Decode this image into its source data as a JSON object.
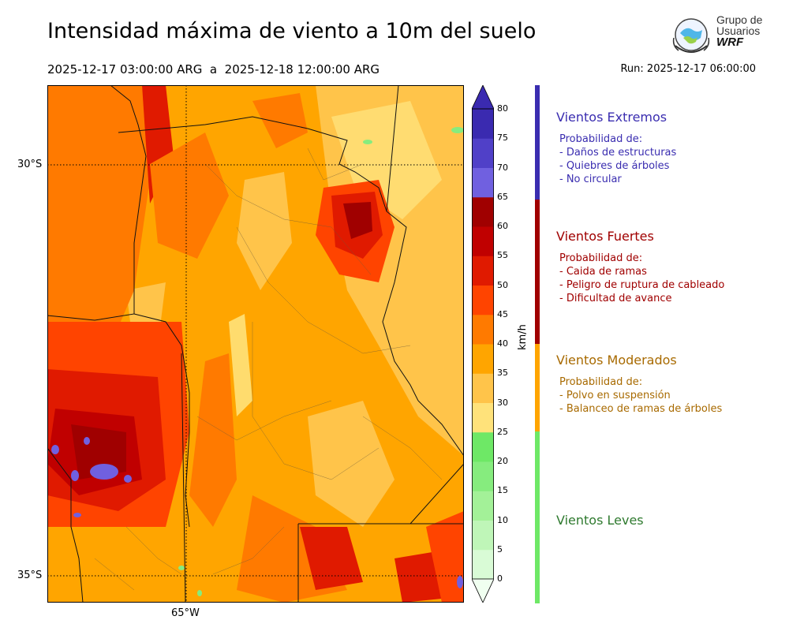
{
  "header": {
    "title": "Intensidad máxima de viento a 10m del suelo",
    "period": "2025-12-17 03:00:00 ARG  a  2025-12-18 12:00:00 ARG",
    "run": "Run: 2025-12-17 06:00:00"
  },
  "logo": {
    "line1": "Grupo de",
    "line2": "Usuarios",
    "line3": "WRF"
  },
  "map": {
    "lat_labels": [
      "30°S",
      "35°S"
    ],
    "lon_labels": [
      "65°W"
    ]
  },
  "colorbar": {
    "unit": "km/h",
    "ticks": [
      "0",
      "5",
      "10",
      "15",
      "20",
      "25",
      "30",
      "35",
      "40",
      "45",
      "50",
      "55",
      "60",
      "65",
      "70",
      "75",
      "80"
    ],
    "colors": [
      "#f0fff0",
      "#d9fbd6",
      "#bff6b8",
      "#a3f198",
      "#86ec7e",
      "#6ee866",
      "#ffe27a",
      "#ffc44a",
      "#ffa500",
      "#ff7a00",
      "#ff4400",
      "#e01a00",
      "#c00000",
      "#a00000",
      "#7060e0",
      "#5040c8",
      "#3a2ab0"
    ]
  },
  "categories": [
    {
      "title": "Vientos Extremos",
      "color": "#3a2db0",
      "intro": "Probabilidad de:",
      "items": [
        "- Daños de estructuras",
        "- Quiebres de árboles",
        "- No circular"
      ]
    },
    {
      "title": "Vientos Fuertes",
      "color": "#a00000",
      "intro": "Probabilidad de:",
      "items": [
        "- Caida de ramas",
        "- Peligro de ruptura de cableado",
        "- Dificultad de avance"
      ]
    },
    {
      "title": "Vientos Moderados",
      "color": "#a86a00",
      "intro": "Probabilidad de:",
      "items": [
        "- Polvo en suspensión",
        "- Balanceo de ramas de árboles"
      ]
    },
    {
      "title": "Vientos Leves",
      "color": "#2f7a2f",
      "intro": "",
      "items": []
    }
  ]
}
